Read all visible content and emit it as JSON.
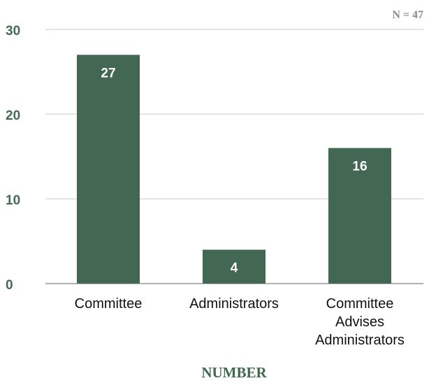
{
  "chart_data": {
    "type": "bar",
    "categories": [
      [
        "Committee"
      ],
      [
        "Administrators"
      ],
      [
        "Committee",
        "Advises",
        "Administrators"
      ]
    ],
    "values": [
      27,
      4,
      16
    ],
    "data_labels": [
      "27",
      "4",
      "16"
    ],
    "xlabel": "NUMBER",
    "ylabel": "",
    "ylim": [
      0,
      30
    ],
    "yticks": [
      "0",
      "10",
      "20",
      "30"
    ],
    "annotation": "N = 47",
    "grid": true,
    "legend": "none",
    "colors": {
      "bar": "#426753",
      "tick_text": "#456a52",
      "axis_title": "#3e6b4e",
      "gridline": "#c8c8c8",
      "baseline": "#9a9a9a",
      "annotation": "#8a8a8a"
    }
  }
}
